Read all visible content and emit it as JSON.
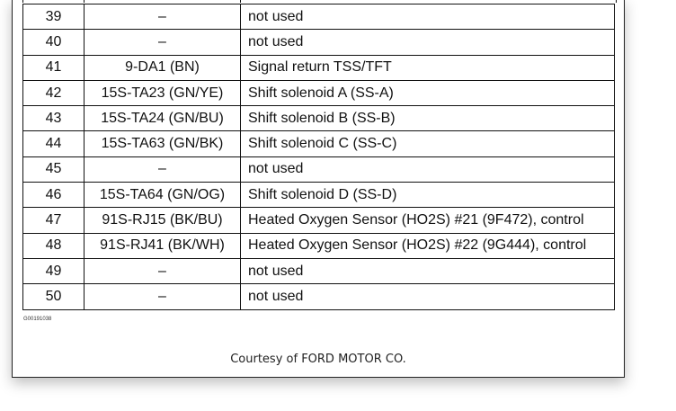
{
  "rows": [
    {
      "pin": "39",
      "circuit": "–",
      "function": "not used"
    },
    {
      "pin": "40",
      "circuit": "–",
      "function": "not used"
    },
    {
      "pin": "41",
      "circuit": "9-DA1 (BN)",
      "function": "Signal return TSS/TFT"
    },
    {
      "pin": "42",
      "circuit": "15S-TA23 (GN/YE)",
      "function": "Shift solenoid A (SS-A)"
    },
    {
      "pin": "43",
      "circuit": "15S-TA24 (GN/BU)",
      "function": "Shift solenoid B (SS-B)"
    },
    {
      "pin": "44",
      "circuit": "15S-TA63 (GN/BK)",
      "function": "Shift solenoid C (SS-C)"
    },
    {
      "pin": "45",
      "circuit": "–",
      "function": "not used"
    },
    {
      "pin": "46",
      "circuit": "15S-TA64 (GN/OG)",
      "function": "Shift solenoid D (SS-D)"
    },
    {
      "pin": "47",
      "circuit": "91S-RJ15 (BK/BU)",
      "function": "Heated Oxygen Sensor (HO2S) #21 (9F472), control"
    },
    {
      "pin": "48",
      "circuit": "91S-RJ41 (BK/WH)",
      "function": "Heated Oxygen Sensor (HO2S) #22 (9G444), control"
    },
    {
      "pin": "49",
      "circuit": "–",
      "function": "not used"
    },
    {
      "pin": "50",
      "circuit": "–",
      "function": "not used"
    }
  ],
  "figure_id": "G00191038",
  "courtesy": "Courtesy of FORD MOTOR CO."
}
